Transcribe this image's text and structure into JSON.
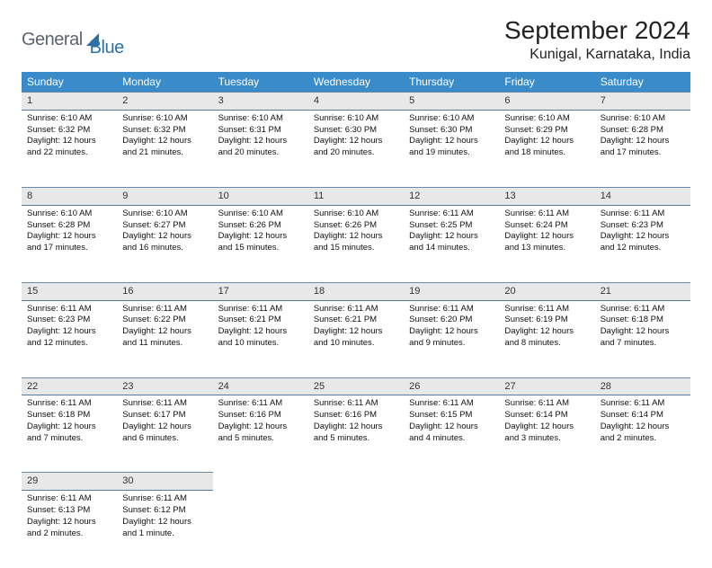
{
  "brand": {
    "part1": "General",
    "part2": "Blue"
  },
  "title": "September 2024",
  "location": "Kunigal, Karnataka, India",
  "day_headers": [
    "Sunday",
    "Monday",
    "Tuesday",
    "Wednesday",
    "Thursday",
    "Friday",
    "Saturday"
  ],
  "colors": {
    "header_bg": "#3a8bc9",
    "header_text": "#ffffff",
    "daynum_bg": "#e8e8e8",
    "row_border": "#6a8aa8",
    "logo_gray": "#5a6470",
    "logo_blue": "#2f6fa8"
  },
  "font": {
    "title_size": 28,
    "location_size": 16,
    "header_size": 12,
    "body_size": 9.5
  },
  "weeks": [
    [
      {
        "n": "1",
        "sr": "Sunrise: 6:10 AM",
        "ss": "Sunset: 6:32 PM",
        "d1": "Daylight: 12 hours",
        "d2": "and 22 minutes."
      },
      {
        "n": "2",
        "sr": "Sunrise: 6:10 AM",
        "ss": "Sunset: 6:32 PM",
        "d1": "Daylight: 12 hours",
        "d2": "and 21 minutes."
      },
      {
        "n": "3",
        "sr": "Sunrise: 6:10 AM",
        "ss": "Sunset: 6:31 PM",
        "d1": "Daylight: 12 hours",
        "d2": "and 20 minutes."
      },
      {
        "n": "4",
        "sr": "Sunrise: 6:10 AM",
        "ss": "Sunset: 6:30 PM",
        "d1": "Daylight: 12 hours",
        "d2": "and 20 minutes."
      },
      {
        "n": "5",
        "sr": "Sunrise: 6:10 AM",
        "ss": "Sunset: 6:30 PM",
        "d1": "Daylight: 12 hours",
        "d2": "and 19 minutes."
      },
      {
        "n": "6",
        "sr": "Sunrise: 6:10 AM",
        "ss": "Sunset: 6:29 PM",
        "d1": "Daylight: 12 hours",
        "d2": "and 18 minutes."
      },
      {
        "n": "7",
        "sr": "Sunrise: 6:10 AM",
        "ss": "Sunset: 6:28 PM",
        "d1": "Daylight: 12 hours",
        "d2": "and 17 minutes."
      }
    ],
    [
      {
        "n": "8",
        "sr": "Sunrise: 6:10 AM",
        "ss": "Sunset: 6:28 PM",
        "d1": "Daylight: 12 hours",
        "d2": "and 17 minutes."
      },
      {
        "n": "9",
        "sr": "Sunrise: 6:10 AM",
        "ss": "Sunset: 6:27 PM",
        "d1": "Daylight: 12 hours",
        "d2": "and 16 minutes."
      },
      {
        "n": "10",
        "sr": "Sunrise: 6:10 AM",
        "ss": "Sunset: 6:26 PM",
        "d1": "Daylight: 12 hours",
        "d2": "and 15 minutes."
      },
      {
        "n": "11",
        "sr": "Sunrise: 6:10 AM",
        "ss": "Sunset: 6:26 PM",
        "d1": "Daylight: 12 hours",
        "d2": "and 15 minutes."
      },
      {
        "n": "12",
        "sr": "Sunrise: 6:11 AM",
        "ss": "Sunset: 6:25 PM",
        "d1": "Daylight: 12 hours",
        "d2": "and 14 minutes."
      },
      {
        "n": "13",
        "sr": "Sunrise: 6:11 AM",
        "ss": "Sunset: 6:24 PM",
        "d1": "Daylight: 12 hours",
        "d2": "and 13 minutes."
      },
      {
        "n": "14",
        "sr": "Sunrise: 6:11 AM",
        "ss": "Sunset: 6:23 PM",
        "d1": "Daylight: 12 hours",
        "d2": "and 12 minutes."
      }
    ],
    [
      {
        "n": "15",
        "sr": "Sunrise: 6:11 AM",
        "ss": "Sunset: 6:23 PM",
        "d1": "Daylight: 12 hours",
        "d2": "and 12 minutes."
      },
      {
        "n": "16",
        "sr": "Sunrise: 6:11 AM",
        "ss": "Sunset: 6:22 PM",
        "d1": "Daylight: 12 hours",
        "d2": "and 11 minutes."
      },
      {
        "n": "17",
        "sr": "Sunrise: 6:11 AM",
        "ss": "Sunset: 6:21 PM",
        "d1": "Daylight: 12 hours",
        "d2": "and 10 minutes."
      },
      {
        "n": "18",
        "sr": "Sunrise: 6:11 AM",
        "ss": "Sunset: 6:21 PM",
        "d1": "Daylight: 12 hours",
        "d2": "and 10 minutes."
      },
      {
        "n": "19",
        "sr": "Sunrise: 6:11 AM",
        "ss": "Sunset: 6:20 PM",
        "d1": "Daylight: 12 hours",
        "d2": "and 9 minutes."
      },
      {
        "n": "20",
        "sr": "Sunrise: 6:11 AM",
        "ss": "Sunset: 6:19 PM",
        "d1": "Daylight: 12 hours",
        "d2": "and 8 minutes."
      },
      {
        "n": "21",
        "sr": "Sunrise: 6:11 AM",
        "ss": "Sunset: 6:18 PM",
        "d1": "Daylight: 12 hours",
        "d2": "and 7 minutes."
      }
    ],
    [
      {
        "n": "22",
        "sr": "Sunrise: 6:11 AM",
        "ss": "Sunset: 6:18 PM",
        "d1": "Daylight: 12 hours",
        "d2": "and 7 minutes."
      },
      {
        "n": "23",
        "sr": "Sunrise: 6:11 AM",
        "ss": "Sunset: 6:17 PM",
        "d1": "Daylight: 12 hours",
        "d2": "and 6 minutes."
      },
      {
        "n": "24",
        "sr": "Sunrise: 6:11 AM",
        "ss": "Sunset: 6:16 PM",
        "d1": "Daylight: 12 hours",
        "d2": "and 5 minutes."
      },
      {
        "n": "25",
        "sr": "Sunrise: 6:11 AM",
        "ss": "Sunset: 6:16 PM",
        "d1": "Daylight: 12 hours",
        "d2": "and 5 minutes."
      },
      {
        "n": "26",
        "sr": "Sunrise: 6:11 AM",
        "ss": "Sunset: 6:15 PM",
        "d1": "Daylight: 12 hours",
        "d2": "and 4 minutes."
      },
      {
        "n": "27",
        "sr": "Sunrise: 6:11 AM",
        "ss": "Sunset: 6:14 PM",
        "d1": "Daylight: 12 hours",
        "d2": "and 3 minutes."
      },
      {
        "n": "28",
        "sr": "Sunrise: 6:11 AM",
        "ss": "Sunset: 6:14 PM",
        "d1": "Daylight: 12 hours",
        "d2": "and 2 minutes."
      }
    ],
    [
      {
        "n": "29",
        "sr": "Sunrise: 6:11 AM",
        "ss": "Sunset: 6:13 PM",
        "d1": "Daylight: 12 hours",
        "d2": "and 2 minutes."
      },
      {
        "n": "30",
        "sr": "Sunrise: 6:11 AM",
        "ss": "Sunset: 6:12 PM",
        "d1": "Daylight: 12 hours",
        "d2": "and 1 minute."
      },
      null,
      null,
      null,
      null,
      null
    ]
  ]
}
